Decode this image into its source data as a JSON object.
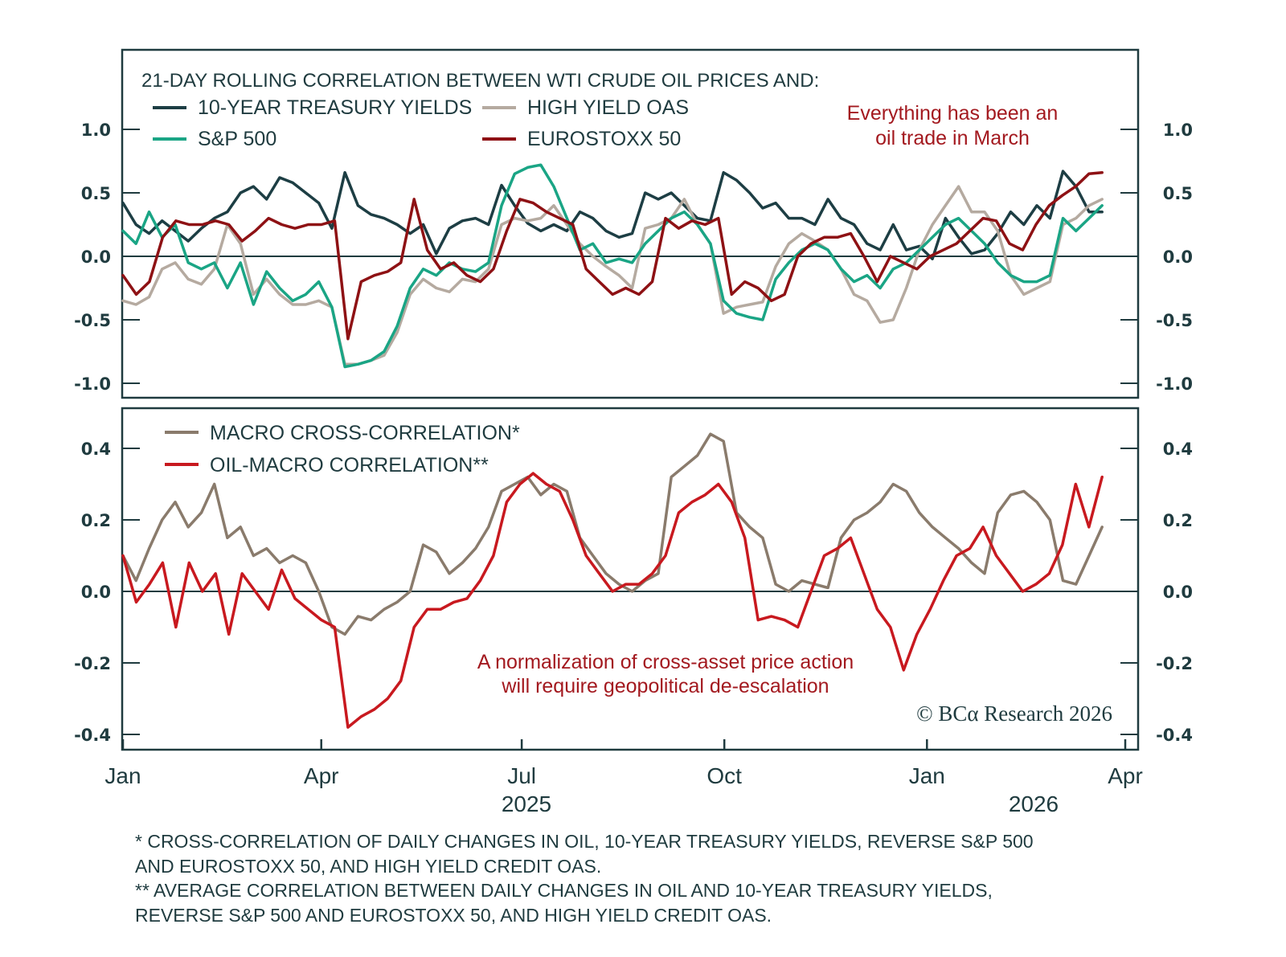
{
  "colors": {
    "treasury": "#1d3e44",
    "hy_oas": "#b5aaa0",
    "sp500": "#1aa585",
    "eurostoxx": "#8e1114",
    "macro_cross": "#8a7b6c",
    "oil_macro": "#c8191f",
    "axis": "#1f3b3f",
    "annotation": "#a3191f"
  },
  "chart_data": [
    {
      "type": "line",
      "panel": "top",
      "title": "21-DAY ROLLING CORRELATION BETWEEN WTI CRUDE OIL PRICES AND:",
      "x_unit": "weeks since 2025-01-01",
      "ylim": [
        -1.0,
        1.0
      ],
      "yticks": [
        "1.0",
        "0.5",
        "0.0",
        "-0.5",
        "-1.0"
      ],
      "ytick_values": [
        1.0,
        0.5,
        0.0,
        -0.5,
        -1.0
      ],
      "zero_line": true,
      "legend_placement": "top-left",
      "annotation": [
        "Everything has been an",
        "oil trade in March"
      ],
      "series": [
        {
          "name": "10-YEAR TREASURY YIELDS",
          "key": "treasury",
          "values": [
            0.42,
            0.25,
            0.18,
            0.28,
            0.2,
            0.12,
            0.22,
            0.3,
            0.35,
            0.5,
            0.55,
            0.45,
            0.62,
            0.58,
            0.5,
            0.42,
            0.22,
            0.66,
            0.4,
            0.33,
            0.3,
            0.25,
            0.18,
            0.25,
            0.02,
            0.22,
            0.28,
            0.3,
            0.25,
            0.56,
            0.4,
            0.26,
            0.2,
            0.25,
            0.2,
            0.35,
            0.3,
            0.2,
            0.15,
            0.18,
            0.5,
            0.45,
            0.5,
            0.4,
            0.3,
            0.28,
            0.66,
            0.6,
            0.5,
            0.38,
            0.42,
            0.3,
            0.3,
            0.25,
            0.45,
            0.3,
            0.25,
            0.1,
            0.05,
            0.25,
            0.05,
            0.08,
            -0.02,
            0.3,
            0.15,
            0.02,
            0.05,
            0.18,
            0.35,
            0.25,
            0.4,
            0.3,
            0.67,
            0.55,
            0.35,
            0.35
          ]
        },
        {
          "name": "HIGH YIELD OAS",
          "key": "hy_oas",
          "values": [
            -0.35,
            -0.38,
            -0.32,
            -0.1,
            -0.05,
            -0.18,
            -0.22,
            -0.1,
            0.25,
            0.1,
            -0.3,
            -0.18,
            -0.3,
            -0.38,
            -0.38,
            -0.35,
            -0.4,
            -0.85,
            -0.85,
            -0.82,
            -0.78,
            -0.6,
            -0.3,
            -0.18,
            -0.25,
            -0.28,
            -0.18,
            -0.2,
            -0.1,
            0.25,
            0.3,
            0.28,
            0.3,
            0.4,
            0.25,
            0.1,
            0.0,
            -0.08,
            -0.15,
            -0.25,
            0.22,
            0.25,
            0.3,
            0.45,
            0.25,
            0.1,
            -0.45,
            -0.4,
            -0.38,
            -0.36,
            -0.08,
            0.1,
            0.18,
            0.12,
            0.05,
            -0.1,
            -0.3,
            -0.35,
            -0.52,
            -0.5,
            -0.25,
            0.05,
            0.25,
            0.4,
            0.55,
            0.35,
            0.35,
            0.2,
            -0.15,
            -0.3,
            -0.25,
            -0.2,
            0.25,
            0.3,
            0.4,
            0.45
          ]
        },
        {
          "name": "S&P 500",
          "key": "sp500",
          "values": [
            0.2,
            0.1,
            0.35,
            0.15,
            0.25,
            -0.05,
            -0.1,
            -0.05,
            -0.25,
            -0.05,
            -0.38,
            -0.12,
            -0.25,
            -0.35,
            -0.3,
            -0.2,
            -0.4,
            -0.87,
            -0.85,
            -0.82,
            -0.75,
            -0.55,
            -0.25,
            -0.1,
            -0.15,
            -0.05,
            -0.1,
            -0.12,
            -0.05,
            0.4,
            0.65,
            0.7,
            0.72,
            0.55,
            0.3,
            0.05,
            0.1,
            -0.05,
            -0.02,
            -0.05,
            0.1,
            0.2,
            0.3,
            0.35,
            0.25,
            0.1,
            -0.35,
            -0.45,
            -0.48,
            -0.5,
            -0.18,
            -0.05,
            0.05,
            0.1,
            0.05,
            -0.1,
            -0.2,
            -0.15,
            -0.25,
            -0.1,
            -0.05,
            0.05,
            0.15,
            0.25,
            0.3,
            0.2,
            0.1,
            -0.05,
            -0.15,
            -0.2,
            -0.2,
            -0.15,
            0.3,
            0.2,
            0.3,
            0.4
          ]
        },
        {
          "name": "EUROSTOXX 50",
          "key": "eurostoxx",
          "values": [
            -0.15,
            -0.3,
            -0.2,
            0.15,
            0.28,
            0.25,
            0.25,
            0.28,
            0.25,
            0.12,
            0.2,
            0.3,
            0.25,
            0.22,
            0.25,
            0.25,
            0.28,
            -0.65,
            -0.2,
            -0.15,
            -0.12,
            -0.05,
            0.45,
            0.05,
            -0.1,
            -0.05,
            -0.15,
            -0.2,
            -0.1,
            0.2,
            0.45,
            0.42,
            0.35,
            0.3,
            0.25,
            -0.1,
            -0.2,
            -0.3,
            -0.25,
            -0.3,
            -0.2,
            0.3,
            0.22,
            0.28,
            0.25,
            0.3,
            -0.3,
            -0.2,
            -0.25,
            -0.35,
            -0.3,
            0.0,
            0.1,
            0.15,
            0.15,
            0.18,
            0.0,
            -0.2,
            0.0,
            -0.05,
            -0.1,
            0.0,
            0.05,
            0.1,
            0.2,
            0.3,
            0.28,
            0.1,
            0.05,
            0.25,
            0.4,
            0.48,
            0.55,
            0.65,
            0.66
          ]
        }
      ]
    },
    {
      "type": "line",
      "panel": "bottom",
      "title": "",
      "x_unit": "weeks since 2025-01-01",
      "ylim": [
        -0.42,
        0.48
      ],
      "yticks": [
        "0.4",
        "0.2",
        "0.0",
        "-0.2",
        "-0.4"
      ],
      "ytick_values": [
        0.4,
        0.2,
        0.0,
        -0.2,
        -0.4
      ],
      "zero_line": true,
      "legend_placement": "top-left",
      "annotation": [
        "A normalization of cross-asset price action",
        "will require geopolitical de-escalation"
      ],
      "series": [
        {
          "name": "MACRO CROSS-CORRELATION*",
          "key": "macro_cross",
          "values": [
            0.1,
            0.03,
            0.12,
            0.2,
            0.25,
            0.18,
            0.22,
            0.3,
            0.15,
            0.18,
            0.1,
            0.12,
            0.08,
            0.1,
            0.08,
            0.0,
            -0.1,
            -0.12,
            -0.07,
            -0.08,
            -0.05,
            -0.03,
            0.0,
            0.13,
            0.11,
            0.05,
            0.08,
            0.12,
            0.18,
            0.28,
            0.3,
            0.32,
            0.27,
            0.3,
            0.28,
            0.15,
            0.1,
            0.05,
            0.02,
            0.0,
            0.03,
            0.05,
            0.32,
            0.35,
            0.38,
            0.44,
            0.42,
            0.22,
            0.18,
            0.15,
            0.02,
            0.0,
            0.03,
            0.02,
            0.01,
            0.15,
            0.2,
            0.22,
            0.25,
            0.3,
            0.28,
            0.22,
            0.18,
            0.15,
            0.12,
            0.08,
            0.05,
            0.22,
            0.27,
            0.28,
            0.25,
            0.2,
            0.03,
            0.02,
            0.1,
            0.18
          ]
        },
        {
          "name": "OIL-MACRO CORRELATION**",
          "key": "oil_macro",
          "values": [
            0.1,
            -0.03,
            0.02,
            0.08,
            -0.1,
            0.08,
            0.0,
            0.05,
            -0.12,
            0.05,
            0.0,
            -0.05,
            0.06,
            -0.02,
            -0.05,
            -0.08,
            -0.1,
            -0.38,
            -0.35,
            -0.33,
            -0.3,
            -0.25,
            -0.1,
            -0.05,
            -0.05,
            -0.03,
            -0.02,
            0.03,
            0.1,
            0.25,
            0.3,
            0.33,
            0.3,
            0.28,
            0.2,
            0.1,
            0.05,
            0.0,
            0.02,
            0.02,
            0.05,
            0.1,
            0.22,
            0.25,
            0.27,
            0.3,
            0.25,
            0.15,
            -0.08,
            -0.07,
            -0.08,
            -0.1,
            0.0,
            0.1,
            0.12,
            0.15,
            0.05,
            -0.05,
            -0.1,
            -0.22,
            -0.12,
            -0.05,
            0.03,
            0.1,
            0.12,
            0.18,
            0.1,
            0.05,
            0.0,
            0.02,
            0.05,
            0.13,
            0.3,
            0.18,
            0.32
          ]
        }
      ]
    }
  ],
  "top_panel": {
    "title": "21-DAY ROLLING CORRELATION BETWEEN WTI CRUDE OIL PRICES AND:",
    "legend": [
      "10-YEAR TREASURY YIELDS",
      "HIGH YIELD OAS",
      "S&P 500",
      "EUROSTOXX 50"
    ],
    "annotation_line1": "Everything has been an",
    "annotation_line2": "oil trade in March"
  },
  "bottom_panel": {
    "legend": [
      "MACRO CROSS-CORRELATION*",
      "OIL-MACRO CORRELATION**"
    ],
    "annotation_line1": "A normalization of cross-asset price action",
    "annotation_line2": "will require geopolitical de-escalation",
    "copyright": "© BCα Research 2026"
  },
  "x_axis": {
    "ticks": [
      "Jan",
      "Apr",
      "Jul",
      "Oct",
      "Jan",
      "Apr"
    ],
    "years": [
      "2025",
      "2026"
    ]
  },
  "footnotes": [
    "* CROSS-CORRELATION OF DAILY CHANGES IN OIL, 10-YEAR TREASURY YIELDS, REVERSE S&P 500",
    "AND EUROSTOXX 50, AND HIGH YIELD CREDIT OAS.",
    "** AVERAGE CORRELATION BETWEEN DAILY CHANGES IN OIL AND 10-YEAR TREASURY YIELDS,",
    "REVERSE S&P 500 AND EUROSTOXX 50, AND HIGH YIELD CREDIT OAS."
  ]
}
